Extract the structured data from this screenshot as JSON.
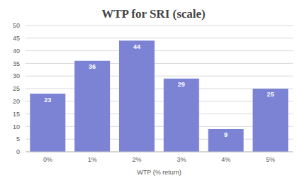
{
  "chart_data": {
    "type": "bar",
    "title": "WTP for SRI (scale)",
    "x_label": "WTP (% return)",
    "categories": [
      "0%",
      "1%",
      "2%",
      "3%",
      "4%",
      "5%"
    ],
    "values": [
      23,
      36,
      44,
      29,
      9,
      25
    ],
    "color": "#7c83d4",
    "ylim": [
      0,
      50
    ],
    "yticks": [
      0,
      5,
      10,
      15,
      20,
      25,
      30,
      35,
      40,
      45,
      50
    ],
    "grid": true,
    "data_labels": true
  }
}
